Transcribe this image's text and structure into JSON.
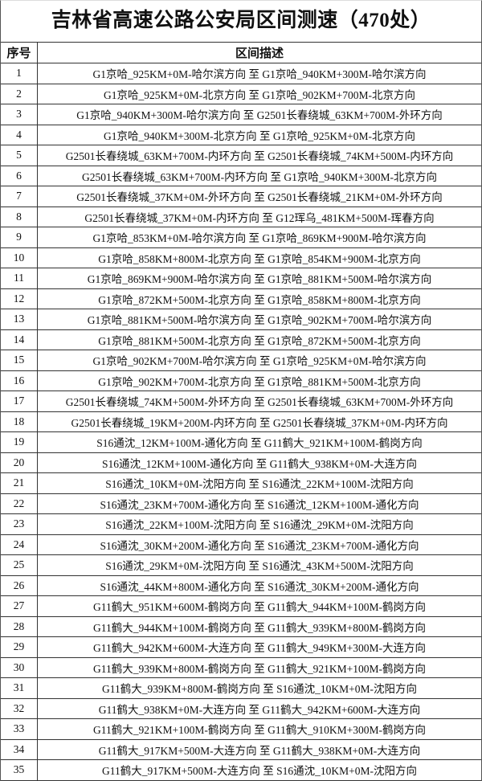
{
  "title": "吉林省高速公路公安局区间测速（470处）",
  "table": {
    "headers": [
      "序号",
      "区间描述"
    ],
    "rows": [
      [
        "1",
        "G1京哈_925KM+0M-哈尔滨方向 至 G1京哈_940KM+300M-哈尔滨方向"
      ],
      [
        "2",
        "G1京哈_925KM+0M-北京方向 至 G1京哈_902KM+700M-北京方向"
      ],
      [
        "3",
        "G1京哈_940KM+300M-哈尔滨方向 至 G2501长春绕城_63KM+700M-外环方向"
      ],
      [
        "4",
        "G1京哈_940KM+300M-北京方向 至 G1京哈_925KM+0M-北京方向"
      ],
      [
        "5",
        "G2501长春绕城_63KM+700M-内环方向 至 G2501长春绕城_74KM+500M-内环方向"
      ],
      [
        "6",
        "G2501长春绕城_63KM+700M-内环方向 至 G1京哈_940KM+300M-北京方向"
      ],
      [
        "7",
        "G2501长春绕城_37KM+0M-外环方向 至 G2501长春绕城_21KM+0M-外环方向"
      ],
      [
        "8",
        "G2501长春绕城_37KM+0M-内环方向 至 G12珲乌_481KM+500M-珲春方向"
      ],
      [
        "9",
        "G1京哈_853KM+0M-哈尔滨方向 至 G1京哈_869KM+900M-哈尔滨方向"
      ],
      [
        "10",
        "G1京哈_858KM+800M-北京方向 至 G1京哈_854KM+900M-北京方向"
      ],
      [
        "11",
        "G1京哈_869KM+900M-哈尔滨方向 至 G1京哈_881KM+500M-哈尔滨方向"
      ],
      [
        "12",
        "G1京哈_872KM+500M-北京方向 至 G1京哈_858KM+800M-北京方向"
      ],
      [
        "13",
        "G1京哈_881KM+500M-哈尔滨方向 至 G1京哈_902KM+700M-哈尔滨方向"
      ],
      [
        "14",
        "G1京哈_881KM+500M-北京方向 至 G1京哈_872KM+500M-北京方向"
      ],
      [
        "15",
        "G1京哈_902KM+700M-哈尔滨方向 至 G1京哈_925KM+0M-哈尔滨方向"
      ],
      [
        "16",
        "G1京哈_902KM+700M-北京方向 至 G1京哈_881KM+500M-北京方向"
      ],
      [
        "17",
        "G2501长春绕城_74KM+500M-外环方向 至 G2501长春绕城_63KM+700M-外环方向"
      ],
      [
        "18",
        "G2501长春绕城_19KM+200M-内环方向 至 G2501长春绕城_37KM+0M-内环方向"
      ],
      [
        "19",
        "S16通沈_12KM+100M-通化方向 至 G11鹤大_921KM+100M-鹤岗方向"
      ],
      [
        "20",
        "S16通沈_12KM+100M-通化方向 至 G11鹤大_938KM+0M-大连方向"
      ],
      [
        "21",
        "S16通沈_10KM+0M-沈阳方向 至 S16通沈_22KM+100M-沈阳方向"
      ],
      [
        "22",
        "S16通沈_23KM+700M-通化方向 至 S16通沈_12KM+100M-通化方向"
      ],
      [
        "23",
        "S16通沈_22KM+100M-沈阳方向 至 S16通沈_29KM+0M-沈阳方向"
      ],
      [
        "24",
        "S16通沈_30KM+200M-通化方向 至 S16通沈_23KM+700M-通化方向"
      ],
      [
        "25",
        "S16通沈_29KM+0M-沈阳方向 至 S16通沈_43KM+500M-沈阳方向"
      ],
      [
        "26",
        "S16通沈_44KM+800M-通化方向 至 S16通沈_30KM+200M-通化方向"
      ],
      [
        "27",
        "G11鹤大_951KM+600M-鹤岗方向 至 G11鹤大_944KM+100M-鹤岗方向"
      ],
      [
        "28",
        "G11鹤大_944KM+100M-鹤岗方向 至 G11鹤大_939KM+800M-鹤岗方向"
      ],
      [
        "29",
        "G11鹤大_942KM+600M-大连方向 至 G11鹤大_949KM+300M-大连方向"
      ],
      [
        "30",
        "G11鹤大_939KM+800M-鹤岗方向 至 G11鹤大_921KM+100M-鹤岗方向"
      ],
      [
        "31",
        "G11鹤大_939KM+800M-鹤岗方向 至 S16通沈_10KM+0M-沈阳方向"
      ],
      [
        "32",
        "G11鹤大_938KM+0M-大连方向 至 G11鹤大_942KM+600M-大连方向"
      ],
      [
        "33",
        "G11鹤大_921KM+100M-鹤岗方向 至 G11鹤大_910KM+300M-鹤岗方向"
      ],
      [
        "34",
        "G11鹤大_917KM+500M-大连方向 至 G11鹤大_938KM+0M-大连方向"
      ],
      [
        "35",
        "G11鹤大_917KM+500M-大连方向 至 S16通沈_10KM+0M-沈阳方向"
      ]
    ]
  }
}
